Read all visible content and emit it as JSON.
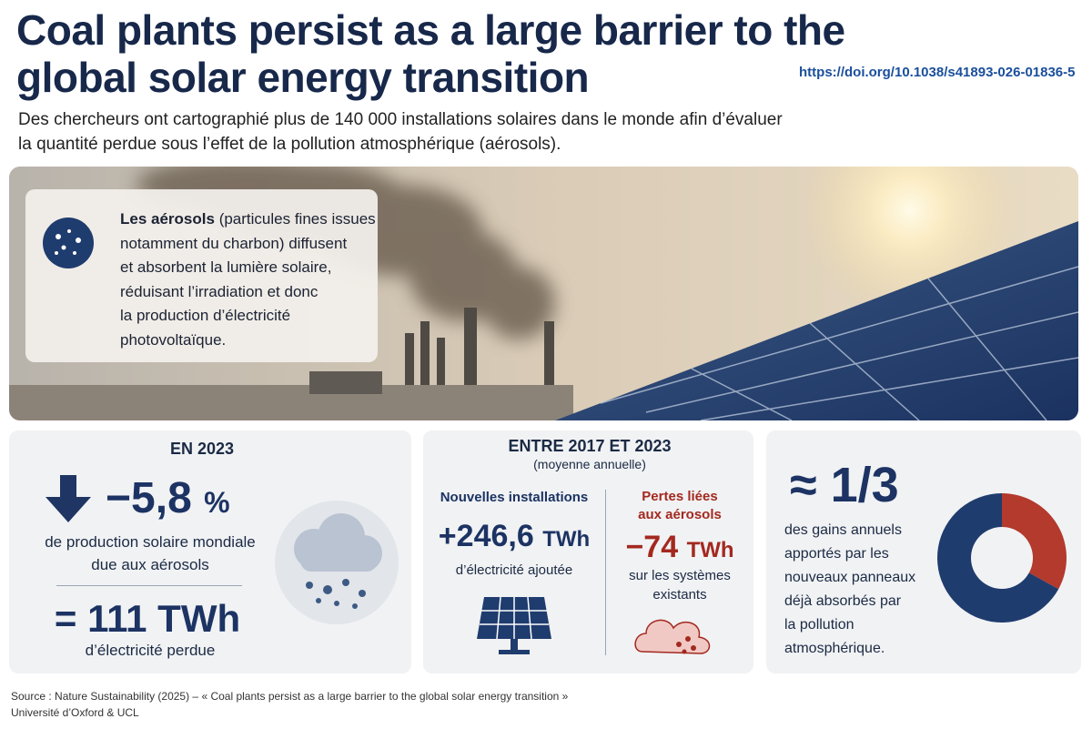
{
  "header": {
    "title_lines": [
      "Coal plants persist as a large barrier to the",
      "global solar energy transition"
    ],
    "doi": "https://doi.org/10.1038/s41893-026-01836-5",
    "subtitle_lines": [
      "Des chercheurs ont cartographié plus de 140 000 installations solaires dans le monde afin d’évaluer",
      "la quantité perdue sous l’effet de la pollution atmosphérique (aérosols)."
    ]
  },
  "callout": {
    "bold": "Les aérosols",
    "lines": [
      "(particules fines issues",
      "notamment du charbon) diffusent",
      "et absorbent la lumière solaire,",
      "réduisant l’irradiation et donc",
      "la production d’électricité",
      "photovoltaïque."
    ]
  },
  "card_2023": {
    "heading": "EN 2023",
    "value": "−5,8",
    "unit": "%",
    "lines": [
      "de production solaire mondiale",
      "due aux aérosols"
    ],
    "total_value": "= 111",
    "total_unit": "TWh",
    "total_caption": "d’électricité perdue"
  },
  "card_2017_2023": {
    "heading": "ENTRE 2017 ET 2023",
    "subheading": "(moyenne annuelle)",
    "new": {
      "label": "Nouvelles installations",
      "value": "+246,6",
      "unit": "TWh",
      "caption": "d’électricité ajoutée"
    },
    "losses": {
      "label_lines": [
        "Pertes liées",
        "aux aérosols"
      ],
      "value": "−74",
      "unit": "TWh",
      "caption_lines": [
        "sur les systèmes",
        "existants"
      ]
    }
  },
  "card_share": {
    "value": "≈ 1/3",
    "lines": [
      "des gains annuels",
      "apportés par les",
      "nouveaux panneaux",
      "déjà absorbés par",
      "la pollution",
      "atmosphérique."
    ],
    "donut": {
      "values": [
        33,
        67
      ],
      "colors": [
        "#b33a2c",
        "#1f3c6e"
      ]
    }
  },
  "footer": {
    "source": "Source : Nature Sustainability (2025) – « Coal plants persist as a large barrier to the global solar energy transition »",
    "affiliation": "Université d’Oxford & UCL"
  }
}
